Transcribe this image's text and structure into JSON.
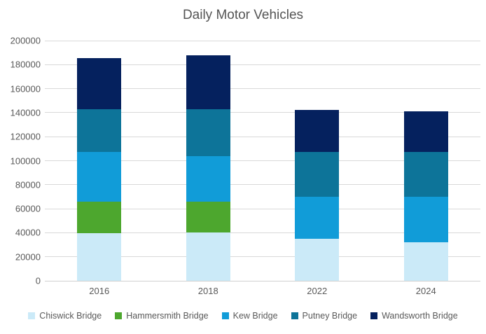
{
  "title": "Daily Motor Vehicles",
  "chart_data": {
    "type": "bar",
    "stacked": true,
    "title": "Daily Motor Vehicles",
    "xlabel": "",
    "ylabel": "",
    "categories": [
      "2016",
      "2018",
      "2022",
      "2024"
    ],
    "series": [
      {
        "name": "Chiswick Bridge",
        "color": "#CBEAF8",
        "values": [
          39500,
          40000,
          35000,
          32000
        ]
      },
      {
        "name": "Hammersmith Bridge",
        "color": "#4DA72E",
        "values": [
          26500,
          26000,
          0,
          0
        ]
      },
      {
        "name": "Kew Bridge",
        "color": "#119CD8",
        "values": [
          41000,
          38000,
          35000,
          38000
        ]
      },
      {
        "name": "Putney Bridge",
        "color": "#0D7499",
        "values": [
          36000,
          39000,
          37000,
          37000
        ]
      },
      {
        "name": "Wandsworth Bridge",
        "color": "#05215E",
        "values": [
          42500,
          45000,
          35500,
          34000
        ]
      }
    ],
    "totals": [
      185500,
      188000,
      142500,
      141000
    ],
    "ylim": [
      0,
      200000
    ],
    "ytick_step": 20000,
    "yticks": [
      0,
      20000,
      40000,
      60000,
      80000,
      100000,
      120000,
      140000,
      160000,
      180000,
      200000
    ],
    "grid": true,
    "legend_position": "bottom",
    "colors": {
      "gridline": "#d9d9d9",
      "axis_text": "#595959",
      "title_text": "#555555",
      "background": "#ffffff"
    }
  }
}
